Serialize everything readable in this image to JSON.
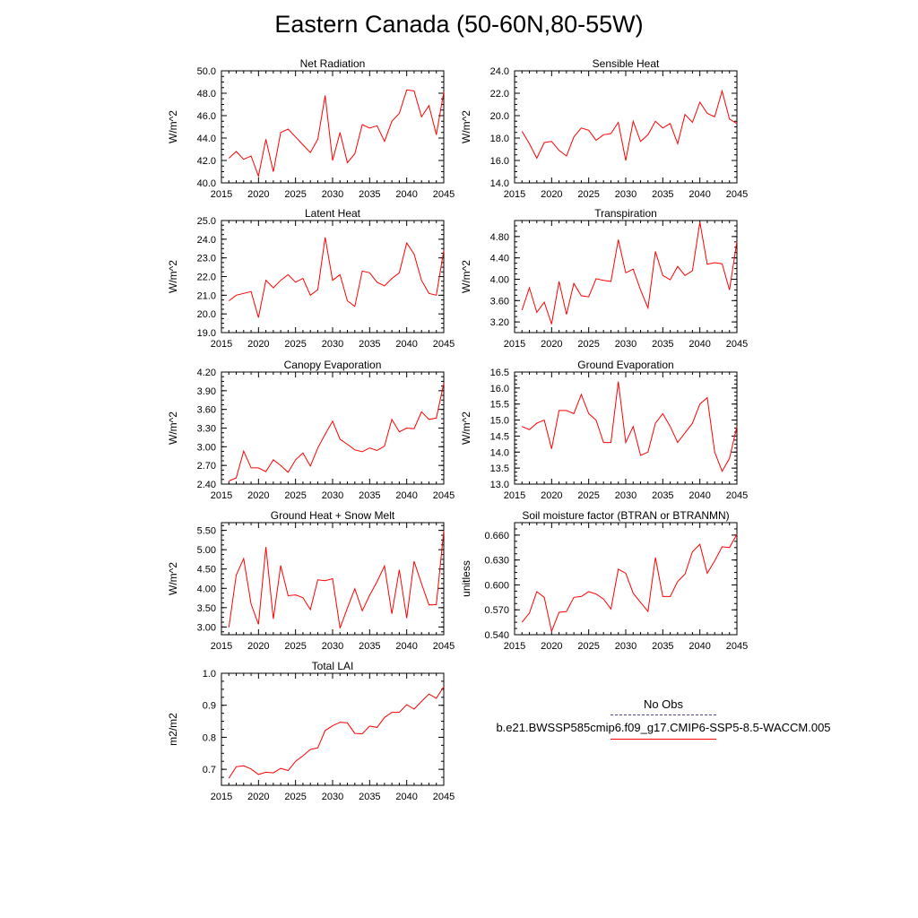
{
  "title": "Eastern Canada (50-60N,80-55W)",
  "legend": {
    "obs_label": "No Obs",
    "case_label": "b.e21.BWSSP585cmip6.f09_g17.CMIP6-SSP5-8.5-WACCM.005",
    "obs_color": "#4a4a8a",
    "case_color": "#ff0000"
  },
  "chart_data": [
    {
      "type": "line",
      "title": "Net Radiation",
      "ylabel": "W/m^2",
      "xlim": [
        2015,
        2045
      ],
      "ylim": [
        40,
        50
      ],
      "xticks": [
        2015,
        2020,
        2025,
        2030,
        2035,
        2040,
        2045
      ],
      "yticks": [
        40,
        42,
        44,
        46,
        48,
        50
      ],
      "ydecimals": 1,
      "x": [
        2016,
        2017,
        2018,
        2019,
        2020,
        2021,
        2022,
        2023,
        2024,
        2025,
        2026,
        2027,
        2028,
        2029,
        2030,
        2031,
        2032,
        2033,
        2034,
        2035,
        2036,
        2037,
        2038,
        2039,
        2040,
        2041,
        2042,
        2043,
        2044,
        2045
      ],
      "series": [
        {
          "color": "#ff0000",
          "values": [
            42.2,
            42.8,
            42.1,
            42.4,
            40.6,
            43.9,
            41.0,
            44.5,
            44.8,
            44.1,
            43.4,
            42.7,
            43.9,
            47.8,
            42.0,
            44.5,
            41.8,
            42.6,
            45.2,
            44.9,
            45.1,
            43.7,
            45.5,
            46.2,
            48.3,
            48.2,
            45.9,
            46.9,
            44.3,
            48.1
          ]
        }
      ]
    },
    {
      "type": "line",
      "title": "Sensible Heat",
      "ylabel": "W/m^2",
      "xlim": [
        2015,
        2045
      ],
      "ylim": [
        14,
        24
      ],
      "xticks": [
        2015,
        2020,
        2025,
        2030,
        2035,
        2040,
        2045
      ],
      "yticks": [
        14,
        16,
        18,
        20,
        22,
        24
      ],
      "ydecimals": 1,
      "x": [
        2016,
        2017,
        2018,
        2019,
        2020,
        2021,
        2022,
        2023,
        2024,
        2025,
        2026,
        2027,
        2028,
        2029,
        2030,
        2031,
        2032,
        2033,
        2034,
        2035,
        2036,
        2037,
        2038,
        2039,
        2040,
        2041,
        2042,
        2043,
        2044,
        2045
      ],
      "series": [
        {
          "color": "#ff0000",
          "values": [
            18.6,
            17.5,
            16.2,
            17.6,
            17.7,
            16.9,
            16.4,
            18.1,
            18.9,
            18.7,
            17.8,
            18.3,
            18.4,
            19.4,
            16.0,
            19.5,
            17.7,
            18.3,
            19.5,
            18.9,
            19.3,
            17.5,
            20.1,
            19.4,
            21.2,
            20.2,
            19.9,
            22.2,
            19.7,
            19.3
          ]
        }
      ]
    },
    {
      "type": "line",
      "title": "Latent Heat",
      "ylabel": "W/m^2",
      "xlim": [
        2015,
        2045
      ],
      "ylim": [
        19,
        25
      ],
      "xticks": [
        2015,
        2020,
        2025,
        2030,
        2035,
        2040,
        2045
      ],
      "yticks": [
        19,
        20,
        21,
        22,
        23,
        24,
        25
      ],
      "ydecimals": 1,
      "x": [
        2016,
        2017,
        2018,
        2019,
        2020,
        2021,
        2022,
        2023,
        2024,
        2025,
        2026,
        2027,
        2028,
        2029,
        2030,
        2031,
        2032,
        2033,
        2034,
        2035,
        2036,
        2037,
        2038,
        2039,
        2040,
        2041,
        2042,
        2043,
        2044,
        2045
      ],
      "series": [
        {
          "color": "#ff0000",
          "values": [
            20.7,
            21.0,
            21.1,
            21.2,
            19.8,
            21.8,
            21.4,
            21.8,
            22.1,
            21.7,
            21.9,
            21.0,
            21.3,
            24.1,
            21.8,
            22.1,
            20.7,
            20.4,
            22.3,
            22.2,
            21.7,
            21.5,
            21.9,
            22.2,
            23.8,
            23.2,
            21.8,
            21.1,
            21.0,
            23.4
          ]
        }
      ]
    },
    {
      "type": "line",
      "title": "Transpiration",
      "ylabel": "W/m^2",
      "xlim": [
        2015,
        2045
      ],
      "ylim": [
        3.0,
        5.1
      ],
      "xticks": [
        2015,
        2020,
        2025,
        2030,
        2035,
        2040,
        2045
      ],
      "yticks": [
        3.2,
        3.6,
        4.0,
        4.4,
        4.8
      ],
      "ydecimals": 2,
      "x": [
        2016,
        2017,
        2018,
        2019,
        2020,
        2021,
        2022,
        2023,
        2024,
        2025,
        2026,
        2027,
        2028,
        2029,
        2030,
        2031,
        2032,
        2033,
        2034,
        2035,
        2036,
        2037,
        2038,
        2039,
        2040,
        2041,
        2042,
        2043,
        2044,
        2045
      ],
      "series": [
        {
          "color": "#ff0000",
          "values": [
            3.42,
            3.84,
            3.38,
            3.57,
            3.16,
            3.96,
            3.34,
            3.92,
            3.69,
            3.67,
            4.01,
            3.98,
            3.96,
            4.74,
            4.12,
            4.19,
            3.8,
            3.46,
            4.52,
            4.07,
            3.99,
            4.24,
            4.07,
            4.16,
            5.07,
            4.28,
            4.31,
            4.29,
            3.8,
            4.71
          ]
        }
      ]
    },
    {
      "type": "line",
      "title": "Canopy Evaporation",
      "ylabel": "W/m^2",
      "xlim": [
        2015,
        2045
      ],
      "ylim": [
        2.4,
        4.2
      ],
      "xticks": [
        2015,
        2020,
        2025,
        2030,
        2035,
        2040,
        2045
      ],
      "yticks": [
        2.4,
        2.7,
        3.0,
        3.3,
        3.6,
        3.9,
        4.2
      ],
      "ydecimals": 2,
      "x": [
        2016,
        2017,
        2018,
        2019,
        2020,
        2021,
        2022,
        2023,
        2024,
        2025,
        2026,
        2027,
        2028,
        2029,
        2030,
        2031,
        2032,
        2033,
        2034,
        2035,
        2036,
        2037,
        2038,
        2039,
        2040,
        2041,
        2042,
        2043,
        2044,
        2045
      ],
      "series": [
        {
          "color": "#ff0000",
          "values": [
            2.45,
            2.5,
            2.93,
            2.66,
            2.66,
            2.6,
            2.79,
            2.7,
            2.59,
            2.79,
            2.9,
            2.69,
            2.98,
            3.2,
            3.41,
            3.12,
            3.04,
            2.95,
            2.92,
            2.98,
            2.94,
            3.01,
            3.44,
            3.24,
            3.3,
            3.29,
            3.56,
            3.44,
            3.46,
            4.02
          ]
        }
      ]
    },
    {
      "type": "line",
      "title": "Ground Evaporation",
      "ylabel": "W/m^2",
      "xlim": [
        2015,
        2045
      ],
      "ylim": [
        13.0,
        16.5
      ],
      "xticks": [
        2015,
        2020,
        2025,
        2030,
        2035,
        2040,
        2045
      ],
      "yticks": [
        13.0,
        13.5,
        14.0,
        14.5,
        15.0,
        15.5,
        16.0,
        16.5
      ],
      "ydecimals": 1,
      "x": [
        2016,
        2017,
        2018,
        2019,
        2020,
        2021,
        2022,
        2023,
        2024,
        2025,
        2026,
        2027,
        2028,
        2029,
        2030,
        2031,
        2032,
        2033,
        2034,
        2035,
        2036,
        2037,
        2038,
        2039,
        2040,
        2041,
        2042,
        2043,
        2044,
        2045
      ],
      "series": [
        {
          "color": "#ff0000",
          "values": [
            14.8,
            14.7,
            14.9,
            15.0,
            14.1,
            15.3,
            15.3,
            15.2,
            15.8,
            15.2,
            15.0,
            14.3,
            14.3,
            16.2,
            14.3,
            14.8,
            13.9,
            14.0,
            14.9,
            15.2,
            14.8,
            14.3,
            14.6,
            14.9,
            15.5,
            15.7,
            14.0,
            13.4,
            13.8,
            14.8
          ]
        }
      ]
    },
    {
      "type": "line",
      "title": "Ground Heat + Snow Melt",
      "ylabel": "W/m^2",
      "xlim": [
        2015,
        2045
      ],
      "ylim": [
        2.8,
        5.7
      ],
      "xticks": [
        2015,
        2020,
        2025,
        2030,
        2035,
        2040,
        2045
      ],
      "yticks": [
        3.0,
        3.5,
        4.0,
        4.5,
        5.0,
        5.5
      ],
      "ydecimals": 2,
      "x": [
        2016,
        2017,
        2018,
        2019,
        2020,
        2021,
        2022,
        2023,
        2024,
        2025,
        2026,
        2027,
        2028,
        2029,
        2030,
        2031,
        2032,
        2033,
        2034,
        2035,
        2036,
        2037,
        2038,
        2039,
        2040,
        2041,
        2042,
        2043,
        2044,
        2045
      ],
      "series": [
        {
          "color": "#ff0000",
          "values": [
            2.99,
            4.34,
            4.77,
            3.59,
            3.07,
            5.07,
            3.21,
            4.59,
            3.81,
            3.83,
            3.76,
            3.45,
            4.22,
            4.2,
            4.25,
            2.97,
            3.49,
            3.99,
            3.42,
            3.82,
            4.17,
            4.58,
            3.34,
            4.48,
            3.23,
            4.7,
            4.12,
            3.57,
            3.58,
            5.49
          ]
        }
      ]
    },
    {
      "type": "line",
      "title": "Soil moisture factor (BTRAN or BTRANMN)",
      "ylabel": "unitless",
      "xlim": [
        2015,
        2045
      ],
      "ylim": [
        0.54,
        0.675
      ],
      "xticks": [
        2015,
        2020,
        2025,
        2030,
        2035,
        2040,
        2045
      ],
      "yticks": [
        0.54,
        0.57,
        0.6,
        0.63,
        0.66
      ],
      "ydecimals": 3,
      "x": [
        2016,
        2017,
        2018,
        2019,
        2020,
        2021,
        2022,
        2023,
        2024,
        2025,
        2026,
        2027,
        2028,
        2029,
        2030,
        2031,
        2032,
        2033,
        2034,
        2035,
        2036,
        2037,
        2038,
        2039,
        2040,
        2041,
        2042,
        2043,
        2044,
        2045
      ],
      "series": [
        {
          "color": "#ff0000",
          "values": [
            0.555,
            0.566,
            0.592,
            0.585,
            0.544,
            0.567,
            0.568,
            0.585,
            0.586,
            0.592,
            0.589,
            0.583,
            0.571,
            0.619,
            0.614,
            0.59,
            0.579,
            0.568,
            0.633,
            0.586,
            0.586,
            0.604,
            0.613,
            0.64,
            0.649,
            0.614,
            0.629,
            0.646,
            0.645,
            0.661
          ]
        }
      ]
    },
    {
      "type": "line",
      "title": "Total LAI",
      "ylabel": "m2/m2",
      "xlim": [
        2015,
        2045
      ],
      "ylim": [
        0.65,
        1.0
      ],
      "xticks": [
        2015,
        2020,
        2025,
        2030,
        2035,
        2040,
        2045
      ],
      "yticks": [
        0.7,
        0.8,
        0.9,
        1.0
      ],
      "ydecimals": 1,
      "x": [
        2016,
        2017,
        2018,
        2019,
        2020,
        2021,
        2022,
        2023,
        2024,
        2025,
        2026,
        2027,
        2028,
        2029,
        2030,
        2031,
        2032,
        2033,
        2034,
        2035,
        2036,
        2037,
        2038,
        2039,
        2040,
        2041,
        2042,
        2043,
        2044,
        2045
      ],
      "series": [
        {
          "color": "#ff0000",
          "values": [
            0.672,
            0.708,
            0.711,
            0.701,
            0.684,
            0.691,
            0.689,
            0.703,
            0.696,
            0.725,
            0.742,
            0.762,
            0.767,
            0.821,
            0.836,
            0.847,
            0.845,
            0.812,
            0.811,
            0.835,
            0.831,
            0.862,
            0.878,
            0.878,
            0.902,
            0.888,
            0.912,
            0.935,
            0.922,
            0.958
          ]
        }
      ]
    }
  ]
}
